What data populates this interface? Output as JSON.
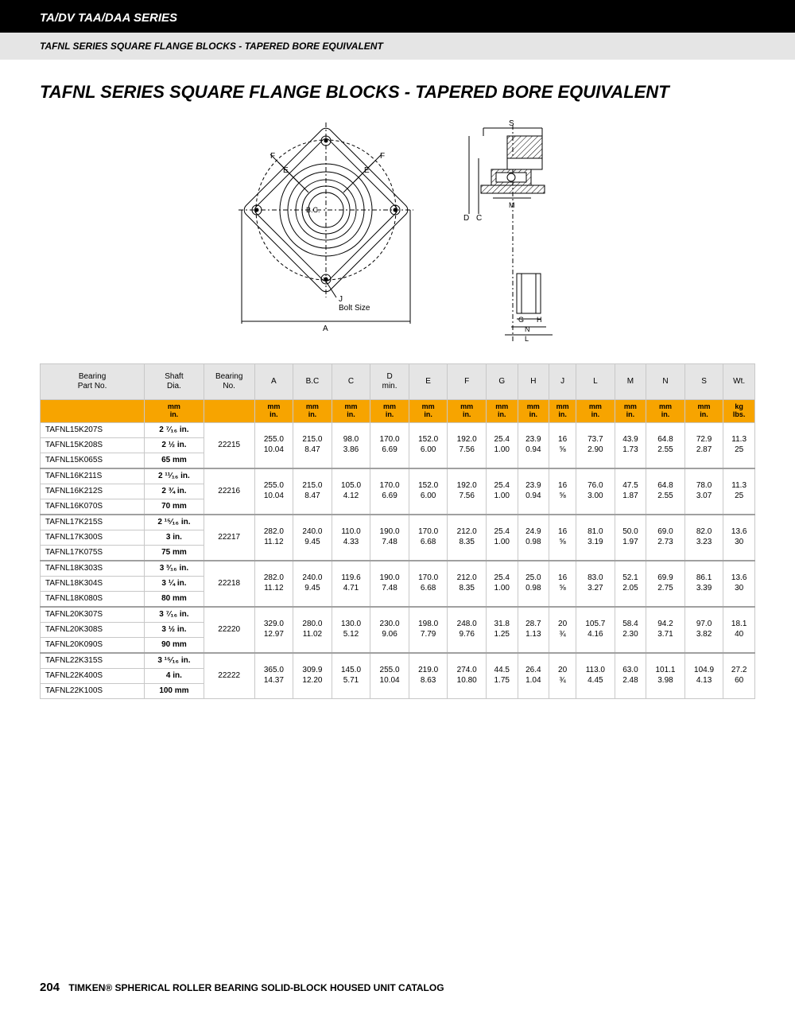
{
  "header_band": "TA/DV TAA/DAA SERIES",
  "sub_band": "TAFNL SERIES SQUARE FLANGE BLOCKS - TAPERED BORE EQUIVALENT",
  "page_title": "TAFNL SERIES SQUARE FLANGE BLOCKS - TAPERED BORE EQUIVALENT",
  "diagram": {
    "labels": {
      "E1": "E",
      "E2": "E",
      "F1": "F",
      "F2": "F",
      "BC": "B.C.",
      "J": "J",
      "BoltSize": "Bolt Size",
      "A": "A",
      "S": "S",
      "D": "D",
      "C": "C",
      "G": "G",
      "H": "H",
      "M": "M",
      "N": "N",
      "L": "L"
    },
    "line_color": "#000000",
    "hatch_color": "#000000",
    "bg": "#ffffff"
  },
  "table": {
    "header_bg": "#e5e5e5",
    "units_bg": "#f7a400",
    "border_color": "#c8c8c8",
    "columns_main": [
      "Bearing\nPart No.",
      "Shaft\nDia.",
      "Bearing\nNo.",
      "A",
      "B.C",
      "C",
      "D\nmin.",
      "E",
      "F",
      "G",
      "H",
      "J",
      "L",
      "M",
      "N",
      "S",
      "Wt."
    ],
    "columns_units": [
      "",
      "mm\nin.",
      "",
      "mm\nin.",
      "mm\nin.",
      "mm\nin.",
      "mm\nin.",
      "mm\nin.",
      "mm\nin.",
      "mm\nin.",
      "mm\nin.",
      "mm\nin.",
      "mm\nin.",
      "mm\nin.",
      "mm\nin.",
      "mm\nin.",
      "kg\nlbs."
    ],
    "groups": [
      {
        "bearing_no": "22215",
        "parts": [
          {
            "pn": "TAFNL15K207S",
            "shaft": "2 ⁷⁄₁₆ in."
          },
          {
            "pn": "TAFNL15K208S",
            "shaft": "2 ½ in."
          },
          {
            "pn": "TAFNL15K065S",
            "shaft": "65 mm"
          }
        ],
        "dims": {
          "A": [
            "255.0",
            "10.04"
          ],
          "BC": [
            "215.0",
            "8.47"
          ],
          "C": [
            "98.0",
            "3.86"
          ],
          "D": [
            "170.0",
            "6.69"
          ],
          "E": [
            "152.0",
            "6.00"
          ],
          "F": [
            "192.0",
            "7.56"
          ],
          "G": [
            "25.4",
            "1.00"
          ],
          "H": [
            "23.9",
            "0.94"
          ],
          "J": [
            "16",
            "⅝"
          ],
          "L": [
            "73.7",
            "2.90"
          ],
          "M": [
            "43.9",
            "1.73"
          ],
          "N": [
            "64.8",
            "2.55"
          ],
          "S": [
            "72.9",
            "2.87"
          ],
          "Wt": [
            "11.3",
            "25"
          ]
        }
      },
      {
        "bearing_no": "22216",
        "parts": [
          {
            "pn": "TAFNL16K211S",
            "shaft": "2 ¹¹⁄₁₆ in."
          },
          {
            "pn": "TAFNL16K212S",
            "shaft": "2 ¾ in."
          },
          {
            "pn": "TAFNL16K070S",
            "shaft": "70 mm"
          }
        ],
        "dims": {
          "A": [
            "255.0",
            "10.04"
          ],
          "BC": [
            "215.0",
            "8.47"
          ],
          "C": [
            "105.0",
            "4.12"
          ],
          "D": [
            "170.0",
            "6.69"
          ],
          "E": [
            "152.0",
            "6.00"
          ],
          "F": [
            "192.0",
            "7.56"
          ],
          "G": [
            "25.4",
            "1.00"
          ],
          "H": [
            "23.9",
            "0.94"
          ],
          "J": [
            "16",
            "⅝"
          ],
          "L": [
            "76.0",
            "3.00"
          ],
          "M": [
            "47.5",
            "1.87"
          ],
          "N": [
            "64.8",
            "2.55"
          ],
          "S": [
            "78.0",
            "3.07"
          ],
          "Wt": [
            "11.3",
            "25"
          ]
        }
      },
      {
        "bearing_no": "22217",
        "parts": [
          {
            "pn": "TAFNL17K215S",
            "shaft": "2 ¹⁵⁄₁₆ in."
          },
          {
            "pn": "TAFNL17K300S",
            "shaft": "3 in."
          },
          {
            "pn": "TAFNL17K075S",
            "shaft": "75 mm"
          }
        ],
        "dims": {
          "A": [
            "282.0",
            "11.12"
          ],
          "BC": [
            "240.0",
            "9.45"
          ],
          "C": [
            "110.0",
            "4.33"
          ],
          "D": [
            "190.0",
            "7.48"
          ],
          "E": [
            "170.0",
            "6.68"
          ],
          "F": [
            "212.0",
            "8.35"
          ],
          "G": [
            "25.4",
            "1.00"
          ],
          "H": [
            "24.9",
            "0.98"
          ],
          "J": [
            "16",
            "⅝"
          ],
          "L": [
            "81.0",
            "3.19"
          ],
          "M": [
            "50.0",
            "1.97"
          ],
          "N": [
            "69.0",
            "2.73"
          ],
          "S": [
            "82.0",
            "3.23"
          ],
          "Wt": [
            "13.6",
            "30"
          ]
        }
      },
      {
        "bearing_no": "22218",
        "parts": [
          {
            "pn": "TAFNL18K303S",
            "shaft": "3 ³⁄₁₆ in."
          },
          {
            "pn": "TAFNL18K304S",
            "shaft": "3 ¼ in."
          },
          {
            "pn": "TAFNL18K080S",
            "shaft": "80 mm"
          }
        ],
        "dims": {
          "A": [
            "282.0",
            "11.12"
          ],
          "BC": [
            "240.0",
            "9.45"
          ],
          "C": [
            "119.6",
            "4.71"
          ],
          "D": [
            "190.0",
            "7.48"
          ],
          "E": [
            "170.0",
            "6.68"
          ],
          "F": [
            "212.0",
            "8.35"
          ],
          "G": [
            "25.4",
            "1.00"
          ],
          "H": [
            "25.0",
            "0.98"
          ],
          "J": [
            "16",
            "⅝"
          ],
          "L": [
            "83.0",
            "3.27"
          ],
          "M": [
            "52.1",
            "2.05"
          ],
          "N": [
            "69.9",
            "2.75"
          ],
          "S": [
            "86.1",
            "3.39"
          ],
          "Wt": [
            "13.6",
            "30"
          ]
        }
      },
      {
        "bearing_no": "22220",
        "parts": [
          {
            "pn": "TAFNL20K307S",
            "shaft": "3 ⁷⁄₁₆ in."
          },
          {
            "pn": "TAFNL20K308S",
            "shaft": "3 ½ in."
          },
          {
            "pn": "TAFNL20K090S",
            "shaft": "90 mm"
          }
        ],
        "dims": {
          "A": [
            "329.0",
            "12.97"
          ],
          "BC": [
            "280.0",
            "11.02"
          ],
          "C": [
            "130.0",
            "5.12"
          ],
          "D": [
            "230.0",
            "9.06"
          ],
          "E": [
            "198.0",
            "7.79"
          ],
          "F": [
            "248.0",
            "9.76"
          ],
          "G": [
            "31.8",
            "1.25"
          ],
          "H": [
            "28.7",
            "1.13"
          ],
          "J": [
            "20",
            "¾"
          ],
          "L": [
            "105.7",
            "4.16"
          ],
          "M": [
            "58.4",
            "2.30"
          ],
          "N": [
            "94.2",
            "3.71"
          ],
          "S": [
            "97.0",
            "3.82"
          ],
          "Wt": [
            "18.1",
            "40"
          ]
        }
      },
      {
        "bearing_no": "22222",
        "parts": [
          {
            "pn": "TAFNL22K315S",
            "shaft": "3 ¹⁵⁄₁₆ in."
          },
          {
            "pn": "TAFNL22K400S",
            "shaft": "4 in."
          },
          {
            "pn": "TAFNL22K100S",
            "shaft": "100 mm"
          }
        ],
        "dims": {
          "A": [
            "365.0",
            "14.37"
          ],
          "BC": [
            "309.9",
            "12.20"
          ],
          "C": [
            "145.0",
            "5.71"
          ],
          "D": [
            "255.0",
            "10.04"
          ],
          "E": [
            "219.0",
            "8.63"
          ],
          "F": [
            "274.0",
            "10.80"
          ],
          "G": [
            "44.5",
            "1.75"
          ],
          "H": [
            "26.4",
            "1.04"
          ],
          "J": [
            "20",
            "¾"
          ],
          "L": [
            "113.0",
            "4.45"
          ],
          "M": [
            "63.0",
            "2.48"
          ],
          "N": [
            "101.1",
            "3.98"
          ],
          "S": [
            "104.9",
            "4.13"
          ],
          "Wt": [
            "27.2",
            "60"
          ]
        }
      }
    ]
  },
  "footer": {
    "page_no": "204",
    "catalog": "TIMKEN® SPHERICAL ROLLER BEARING SOLID-BLOCK HOUSED UNIT CATALOG"
  }
}
